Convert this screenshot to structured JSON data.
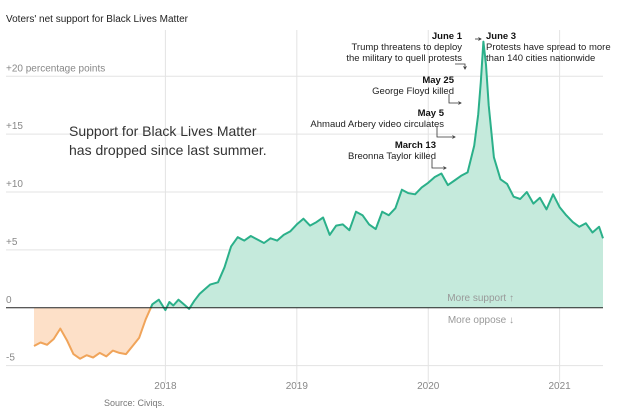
{
  "chart_data": {
    "type": "area",
    "title": "Voters' net support for Black Lives Matter",
    "note": [
      "Support for Black Lives Matter",
      "has dropped since last summer."
    ],
    "source": "Source: Civiqs.",
    "y_unit_label": "+20 percentage points",
    "ylim": [
      -6.5,
      24
    ],
    "yticks": [
      {
        "value": 15,
        "label": "+15"
      },
      {
        "value": 10,
        "label": "+10"
      },
      {
        "value": 5,
        "label": "+5"
      },
      {
        "value": 0,
        "label": "0"
      },
      {
        "value": -5,
        "label": "-5"
      }
    ],
    "xlim": [
      2017.0,
      2021.33
    ],
    "xticks": [
      {
        "value": 2018,
        "label": "2018"
      },
      {
        "value": 2019,
        "label": "2019"
      },
      {
        "value": 2020,
        "label": "2020"
      },
      {
        "value": 2021,
        "label": "2021"
      }
    ],
    "grid": true,
    "zero_labels": {
      "above": "More support ↑",
      "below": "More oppose ↓"
    },
    "colors": {
      "positive_fill": "#c5eadc",
      "positive_line": "#2bb08a",
      "negative_fill": "#fde0c8",
      "negative_line": "#f0a45a",
      "zero_line": "#222222",
      "grid": "#e3e3e3"
    },
    "series": [
      {
        "x": [
          2017.0,
          2017.05,
          2017.1,
          2017.15,
          2017.2,
          2017.25,
          2017.3,
          2017.35,
          2017.4,
          2017.45,
          2017.5,
          2017.55,
          2017.6,
          2017.65,
          2017.7,
          2017.75,
          2017.8,
          2017.85,
          2017.9,
          2017.95,
          2018.0,
          2018.03,
          2018.06,
          2018.1,
          2018.14,
          2018.18,
          2018.22,
          2018.26,
          2018.3,
          2018.34,
          2018.4,
          2018.45,
          2018.5,
          2018.55,
          2018.6,
          2018.65,
          2018.7,
          2018.75,
          2018.8,
          2018.85,
          2018.9,
          2018.95,
          2019.0,
          2019.05,
          2019.1,
          2019.15,
          2019.2,
          2019.25,
          2019.3,
          2019.35,
          2019.4,
          2019.45,
          2019.5,
          2019.55,
          2019.6,
          2019.65,
          2019.7,
          2019.75,
          2019.8,
          2019.85,
          2019.9,
          2019.95,
          2020.0,
          2020.05,
          2020.1,
          2020.15,
          2020.2,
          2020.25,
          2020.3,
          2020.35,
          2020.38,
          2020.4,
          2020.42,
          2020.44,
          2020.46,
          2020.5,
          2020.55,
          2020.6,
          2020.65,
          2020.7,
          2020.75,
          2020.8,
          2020.85,
          2020.9,
          2020.95,
          2021.0,
          2021.05,
          2021.1,
          2021.15,
          2021.2,
          2021.25,
          2021.3,
          2021.33
        ],
        "values": [
          -3.3,
          -3.0,
          -3.2,
          -2.7,
          -1.8,
          -2.8,
          -4.0,
          -4.4,
          -4.1,
          -4.3,
          -3.9,
          -4.2,
          -3.7,
          -3.9,
          -4.0,
          -3.3,
          -2.6,
          -1.0,
          0.3,
          0.7,
          -0.2,
          0.5,
          0.2,
          0.7,
          0.3,
          -0.1,
          0.6,
          1.2,
          1.6,
          2.0,
          2.2,
          3.5,
          5.3,
          6.1,
          5.8,
          6.2,
          5.9,
          5.6,
          6.0,
          5.8,
          6.3,
          6.6,
          7.2,
          7.7,
          7.1,
          7.4,
          7.8,
          6.3,
          7.1,
          7.2,
          6.7,
          8.3,
          8.0,
          7.2,
          6.8,
          8.3,
          8.0,
          8.6,
          10.2,
          9.9,
          9.8,
          10.4,
          10.8,
          11.3,
          11.6,
          10.6,
          11.0,
          11.4,
          11.7,
          14.0,
          16.7,
          19.5,
          23.0,
          21.0,
          17.5,
          13.0,
          11.1,
          10.7,
          9.6,
          9.4,
          10.0,
          9.0,
          9.5,
          8.5,
          9.8,
          8.7,
          8.0,
          7.4,
          7.0,
          7.3,
          6.5,
          7.0,
          6.0
        ]
      }
    ],
    "annotations": [
      {
        "date": "June 1",
        "lines": [
          "Trump threatens to deploy",
          "the military to quell protests"
        ],
        "x": 2020.42,
        "y": 23.0,
        "align": "end"
      },
      {
        "date": "June 3",
        "lines": [
          "Protests have spread to more",
          "than 140 cities nationwide"
        ],
        "x": 2020.43,
        "y": 23.0,
        "align": "start"
      },
      {
        "date": "May 25",
        "lines": [
          "George Floyd killed"
        ],
        "x": 2020.4,
        "y": 19.5,
        "align": "end"
      },
      {
        "date": "May 5",
        "lines": [
          "Ahmaud Arbery video circulates"
        ],
        "x": 2020.35,
        "y": 16.7,
        "align": "end"
      },
      {
        "date": "March 13",
        "lines": [
          "Breonna Taylor killed"
        ],
        "x": 2020.2,
        "y": 11.0,
        "align": "end"
      }
    ]
  }
}
